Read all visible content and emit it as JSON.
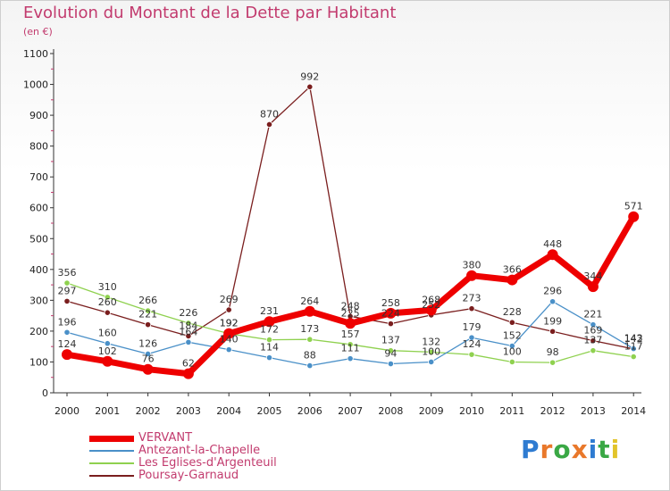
{
  "header": {
    "title": "Evolution du Montant de la Dette par Habitant",
    "unit": "(en €)"
  },
  "logo": {
    "letters": [
      "P",
      "r",
      "o",
      "x",
      "i",
      "t",
      "i"
    ],
    "colors": [
      "#2e7bd1",
      "#e9782b",
      "#3aa845",
      "#e9782b",
      "#2e7bd1",
      "#3aa845",
      "#e2c42b"
    ]
  },
  "chart_data": {
    "type": "line",
    "title": "Evolution du Montant de la Dette par Habitant",
    "ylabel": "(en €)",
    "xlabel": "",
    "ylim": [
      0,
      1100
    ],
    "yticks": [
      0,
      100,
      200,
      300,
      400,
      500,
      600,
      700,
      800,
      900,
      1000,
      1100
    ],
    "x": [
      "2000",
      "2001",
      "2002",
      "2003",
      "2004",
      "2005",
      "2006",
      "2007",
      "2008",
      "2009",
      "2010",
      "2011",
      "2012",
      "2013",
      "2014"
    ],
    "grid": false,
    "legend_position": "bottom-left",
    "series": [
      {
        "name": "VERVANT",
        "color": "#ee0000",
        "values": [
          124,
          102,
          76,
          62,
          192,
          231,
          264,
          225,
          258,
          268,
          380,
          366,
          448,
          344,
          571
        ]
      },
      {
        "name": "Antezant-la-Chapelle",
        "color": "#4a90c8",
        "values": [
          196,
          160,
          126,
          164,
          140,
          114,
          88,
          111,
          94,
          100,
          179,
          152,
          296,
          221,
          143
        ]
      },
      {
        "name": "Les Eglises-d'Argenteuil",
        "color": "#8fd14f",
        "values": [
          356,
          310,
          266,
          226,
          192,
          172,
          173,
          157,
          137,
          132,
          124,
          100,
          98,
          137,
          117
        ]
      },
      {
        "name": "Poursay-Garnaud",
        "color": "#7a1e1e",
        "values": [
          297,
          260,
          221,
          184,
          269,
          870,
          992,
          248,
          224,
          252,
          273,
          228,
          199,
          169,
          142
        ]
      }
    ]
  }
}
